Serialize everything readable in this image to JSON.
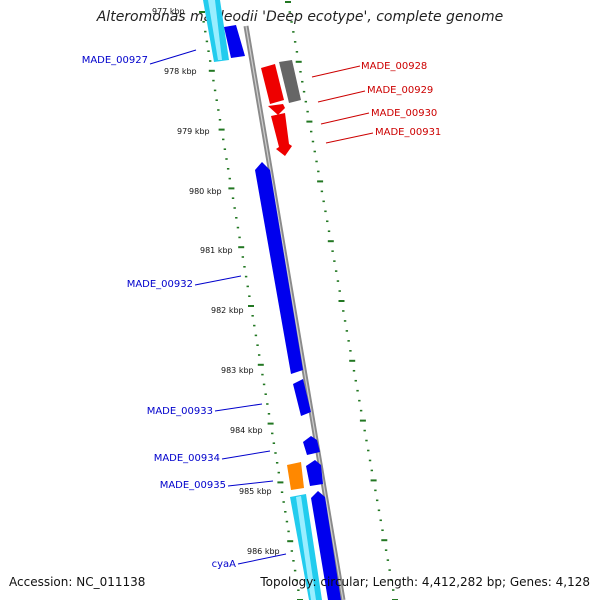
{
  "title": "Alteromonas macleodii 'Deep ecotype', complete genome",
  "footer": {
    "accession": "Accession: NC_011138",
    "summary": "Topology: circular; Length: 4,412,282 bp; Genes: 4,128"
  },
  "ruler": {
    "partial_label": "977 kbp",
    "labels": [
      "978 kbp",
      "979 kbp",
      "980 kbp",
      "981 kbp",
      "982 kbp",
      "983 kbp",
      "984 kbp",
      "985 kbp",
      "986 kbp"
    ]
  },
  "gene_labels": {
    "left": [
      "MADE_00927",
      "MADE_00932",
      "MADE_00933",
      "MADE_00934",
      "MADE_00935",
      "cyaA"
    ],
    "right": [
      "MADE_00928",
      "MADE_00929",
      "MADE_00930",
      "MADE_00931"
    ]
  },
  "colors": {
    "left_label": "#0000cc",
    "right_label": "#cc0000",
    "blue_gene": "#0000ee",
    "cyan_gene": "#22ccee",
    "red_gene": "#ee0000",
    "gray_gene": "#666666",
    "orange_gene": "#ff8800",
    "backbone": "#888888",
    "ruler": "#227722"
  }
}
